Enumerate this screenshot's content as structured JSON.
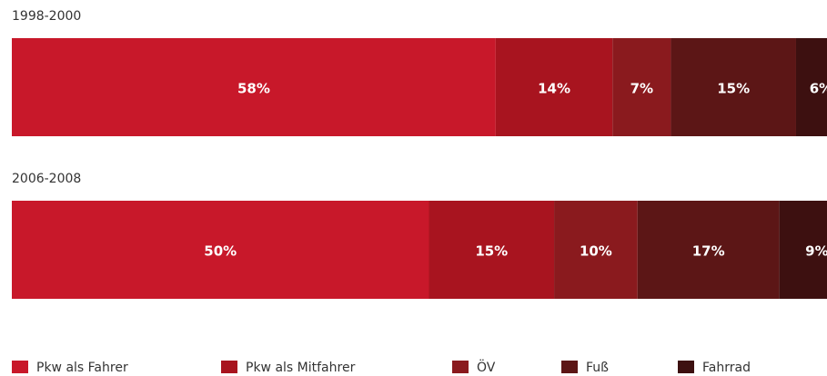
{
  "chart_data": {
    "type": "stacked-barh",
    "categories": [
      "1998-2000",
      "2006-2008"
    ],
    "series": [
      {
        "name": "Pkw als Fahrer",
        "color": "#c8182a",
        "values": [
          58,
          50
        ],
        "value_labels": [
          "58%",
          "50%"
        ]
      },
      {
        "name": "Pkw als Mitfahrer",
        "color": "#a8141f",
        "values": [
          14,
          15
        ],
        "value_labels": [
          "14%",
          "15%"
        ]
      },
      {
        "name": "ÖV",
        "color": "#8a1a1e",
        "values": [
          7,
          10
        ],
        "value_labels": [
          "7%",
          "10%"
        ]
      },
      {
        "name": "Fuß",
        "color": "#5c1616",
        "values": [
          15,
          17
        ],
        "value_labels": [
          "15%",
          "17%"
        ]
      },
      {
        "name": "Fahrrad",
        "color": "#3d1010",
        "values": [
          6,
          9
        ],
        "value_labels": [
          "6%",
          "9%"
        ]
      }
    ]
  }
}
